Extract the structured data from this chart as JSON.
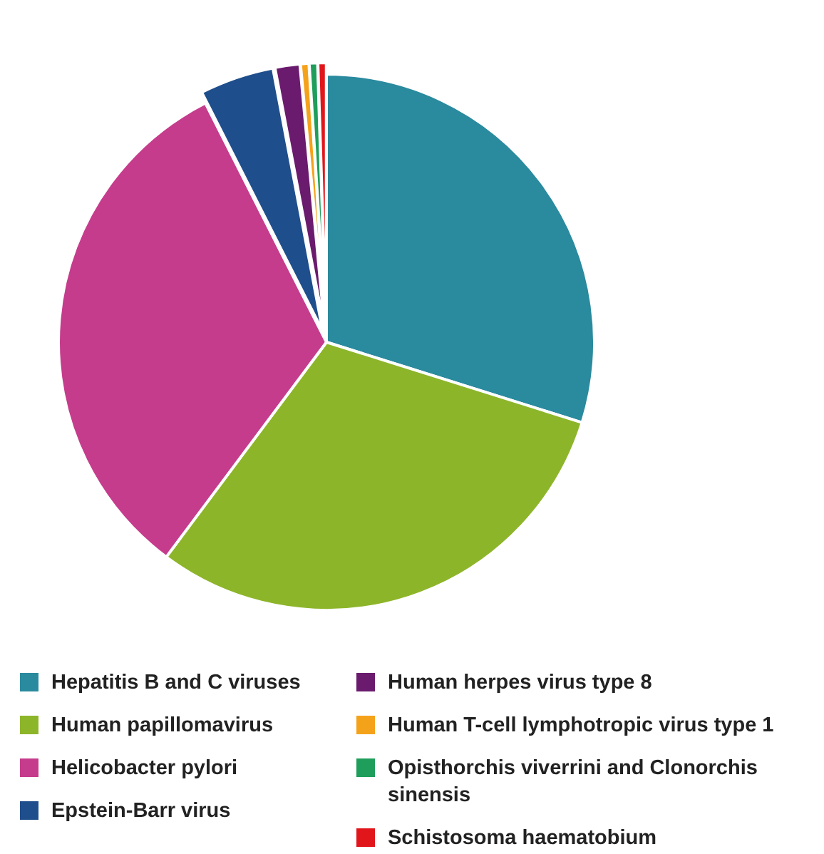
{
  "chart_data": {
    "type": "pie",
    "categories": [
      "Hepatitis B and C viruses",
      "Human papillomavirus",
      "Helicobacter pylori",
      "Epstein-Barr virus",
      "Human herpes virus type 8",
      "Human T-cell lymphotropic virus type 1",
      "Opisthorchis viverrini and Clonorchis sinensis",
      "Schistosoma haematobium"
    ],
    "values": [
      30,
      30.5,
      32.5,
      4.5,
      1.5,
      0.5,
      0.5,
      0.5
    ],
    "colors": [
      "#2a8a9e",
      "#8db52a",
      "#c53c8c",
      "#1f4e8c",
      "#6a1b6e",
      "#f5a21b",
      "#1e9e5a",
      "#e0161b"
    ],
    "legend": "bottom"
  }
}
